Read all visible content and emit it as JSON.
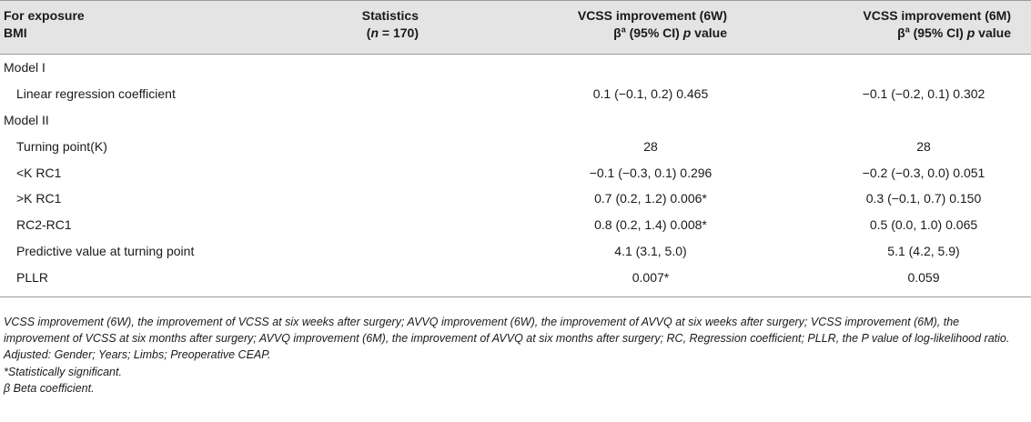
{
  "header": {
    "exposure_line1": "For exposure",
    "exposure_line2": "BMI",
    "stat_line1": "Statistics",
    "stat_n_open": "(",
    "stat_n_var": "n",
    "stat_n_val": " = 170)",
    "col6w_line1": "VCSS improvement (6W)",
    "col6m_line1": "VCSS improvement (6M)",
    "beta": "β",
    "beta_sup": "a",
    "ci_text": " (95% CI) ",
    "p_var": "p",
    "p_rest": " value"
  },
  "rows": [
    {
      "label": "Model I",
      "v6w": "",
      "v6m": ""
    },
    {
      "label": "Linear regression coefficient",
      "v6w": "0.1 (−0.1, 0.2) 0.465",
      "v6m": "−0.1 (−0.2, 0.1) 0.302"
    },
    {
      "label": "Model II",
      "v6w": "",
      "v6m": ""
    },
    {
      "label": "Turning point(K)",
      "v6w": "28",
      "v6m": "28"
    },
    {
      "label": "<K RC1",
      "v6w": "−0.1 (−0.3, 0.1) 0.296",
      "v6m": "−0.2 (−0.3, 0.0) 0.051"
    },
    {
      "label": ">K RC1",
      "v6w": "0.7 (0.2, 1.2) 0.006*",
      "v6m": "0.3 (−0.1, 0.7) 0.150"
    },
    {
      "label": "RC2-RC1",
      "v6w": "0.8 (0.2, 1.4) 0.008*",
      "v6m": "0.5 (0.0, 1.0) 0.065"
    },
    {
      "label": "Predictive value at turning point",
      "v6w": "4.1 (3.1, 5.0)",
      "v6m": "5.1 (4.2, 5.9)"
    },
    {
      "label": "PLLR",
      "v6w": "0.007*",
      "v6m": "0.059"
    }
  ],
  "footnotes": {
    "abbrev": "VCSS improvement (6W), the improvement of VCSS at six weeks after surgery; AVVQ improvement (6W), the improvement of AVVQ at six weeks after surgery; VCSS improvement (6M), the improvement of VCSS at six months after surgery; AVVQ improvement (6M), the improvement of AVVQ at six months after surgery; RC, Regression coefficient; PLLR, the P value of log-likelihood ratio.",
    "adjusted": "Adjusted: Gender; Years; Limbs; Preoperative CEAP.",
    "significant": "*Statistically significant.",
    "beta": "β Beta coefficient."
  }
}
